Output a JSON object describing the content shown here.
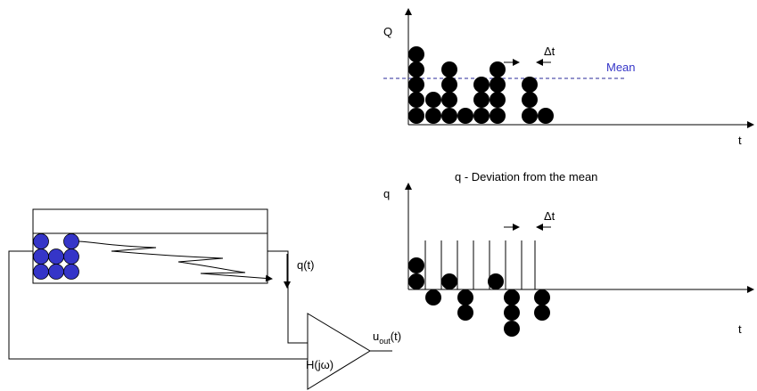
{
  "top_chart": {
    "y_label": "Q",
    "x_label": "t",
    "mean_label": "Mean",
    "delta_label": "Δt"
  },
  "bottom_chart": {
    "title": "q - Deviation from the mean",
    "y_label": "q",
    "x_label": "t",
    "delta_label": "Δt"
  },
  "schematic": {
    "signal_label": "q(t)",
    "block_label": "H(jω)",
    "output_label": {
      "base": "u",
      "sub": "out",
      "tail": "(t)"
    }
  }
}
